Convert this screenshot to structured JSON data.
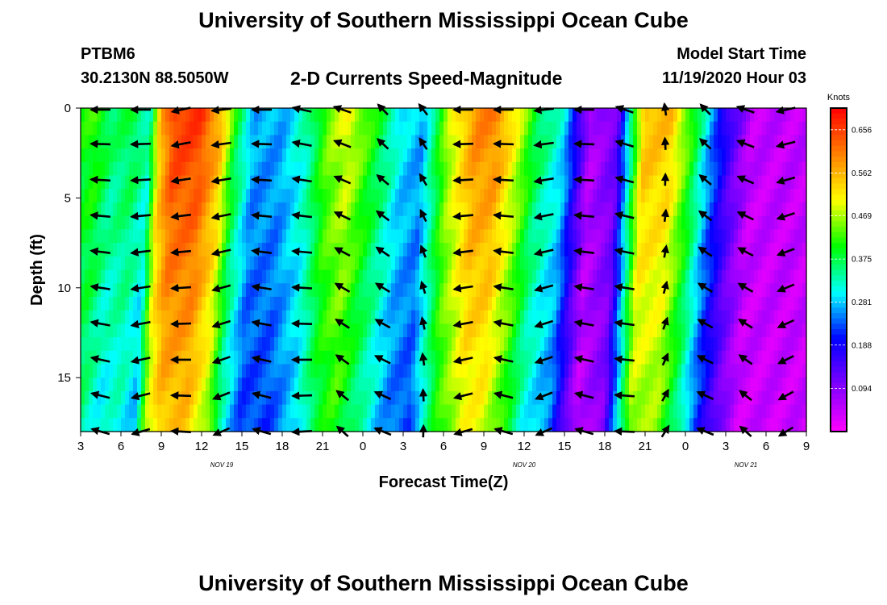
{
  "header": {
    "title": "University of Southern Mississippi Ocean Cube",
    "station_id": "PTBM6",
    "station_coords": "30.2130N 88.5050W",
    "chart_title": "2-D Currents Speed-Magnitude",
    "model_label": "Model Start Time",
    "model_date": "11/19/2020 Hour 03"
  },
  "footer": {
    "title": "University of Southern Mississippi Ocean Cube"
  },
  "chart_data": {
    "type": "heatmap",
    "title": "2-D Currents Speed-Magnitude",
    "xlabel": "Forecast Time(Z)",
    "ylabel": "Depth (ft)",
    "colorbar_label": "Knots",
    "colorbar_ticks": [
      "0.656",
      "0.562",
      "0.469",
      "0.375",
      "0.281",
      "0.188",
      "0.094"
    ],
    "colorbar_range": [
      0,
      0.703
    ],
    "x_range_hours": [
      0,
      54
    ],
    "x_tick_labels": [
      "3",
      "6",
      "9",
      "12",
      "15",
      "18",
      "21",
      "0",
      "3",
      "6",
      "9",
      "12",
      "15",
      "18",
      "21",
      "0",
      "3",
      "6",
      "9"
    ],
    "day_labels": [
      {
        "label": "NOV 19",
        "hour": 10.5
      },
      {
        "label": "NOV 20",
        "hour": 33
      },
      {
        "label": "NOV 21",
        "hour": 49.5
      }
    ],
    "y_range": [
      0,
      18
    ],
    "y_ticks": [
      0,
      5,
      10,
      15
    ],
    "speed_by_hour": [
      {
        "h": 0.0,
        "v": 0.4
      },
      {
        "h": 1.2,
        "v": 0.42
      },
      {
        "h": 2.5,
        "v": 0.36
      },
      {
        "h": 4.0,
        "v": 0.38
      },
      {
        "h": 5.2,
        "v": 0.33
      },
      {
        "h": 6.0,
        "v": 0.56
      },
      {
        "h": 7.0,
        "v": 0.66
      },
      {
        "h": 9.0,
        "v": 0.66
      },
      {
        "h": 10.5,
        "v": 0.56
      },
      {
        "h": 11.5,
        "v": 0.4
      },
      {
        "h": 13.0,
        "v": 0.27
      },
      {
        "h": 15.0,
        "v": 0.27
      },
      {
        "h": 17.0,
        "v": 0.34
      },
      {
        "h": 18.5,
        "v": 0.45
      },
      {
        "h": 20.0,
        "v": 0.5
      },
      {
        "h": 22.0,
        "v": 0.4
      },
      {
        "h": 24.0,
        "v": 0.3
      },
      {
        "h": 25.5,
        "v": 0.27
      },
      {
        "h": 27.5,
        "v": 0.48
      },
      {
        "h": 29.5,
        "v": 0.6
      },
      {
        "h": 31.0,
        "v": 0.6
      },
      {
        "h": 32.5,
        "v": 0.5
      },
      {
        "h": 34.0,
        "v": 0.38
      },
      {
        "h": 36.0,
        "v": 0.3
      },
      {
        "h": 38.0,
        "v": 0.06
      },
      {
        "h": 40.0,
        "v": 0.12
      },
      {
        "h": 42.0,
        "v": 0.56
      },
      {
        "h": 44.0,
        "v": 0.55
      },
      {
        "h": 45.5,
        "v": 0.42
      },
      {
        "h": 47.0,
        "v": 0.26
      },
      {
        "h": 48.5,
        "v": 0.14
      },
      {
        "h": 50.0,
        "v": 0.05
      },
      {
        "h": 54.0,
        "v": 0.05
      }
    ],
    "arrow_hours": [
      1.5,
      4.5,
      7.5,
      10.5,
      13.5,
      16.5,
      19.5,
      22.5,
      25.5,
      28.5,
      31.5,
      34.5,
      37.5,
      40.5,
      43.5,
      46.5,
      49.5,
      52.5
    ],
    "arrow_directions_deg": [
      180,
      180,
      200,
      190,
      180,
      160,
      150,
      120,
      115,
      180,
      180,
      190,
      180,
      150,
      95,
      120,
      150,
      200
    ]
  },
  "colors": {
    "palette": [
      "#ff00ff",
      "#8000ff",
      "#0000ff",
      "#00ffff",
      "#00ff00",
      "#ffff00",
      "#ff8000",
      "#ff0000"
    ],
    "arrow": "#000000",
    "axis": "#000000"
  }
}
